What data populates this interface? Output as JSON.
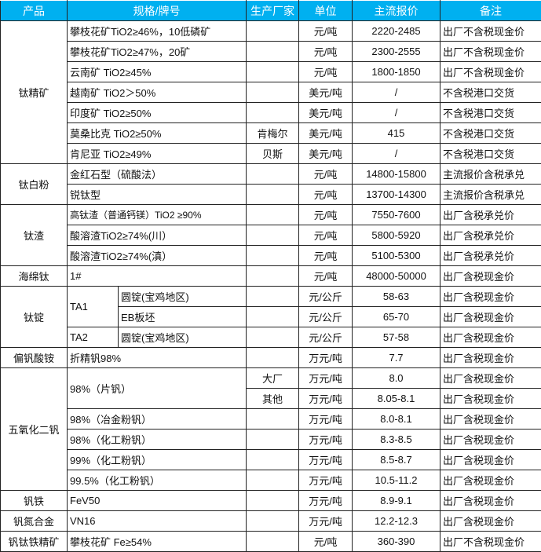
{
  "header": {
    "product": "产品",
    "spec": "规格/牌号",
    "manufacturer": "生产厂家",
    "unit": "单位",
    "price": "主流报价",
    "remark": "备注"
  },
  "accent_color": "#00b0f0",
  "products": [
    {
      "name": "钛精矿",
      "items": [
        {
          "spec": "攀枝花矿TiO2≥46%，10低磷矿",
          "manufacturer": "",
          "unit": "元/吨",
          "price": "2220-2485",
          "remark": "出厂不含税现金价"
        },
        {
          "spec": "攀枝花矿TiO2≥47%，20矿",
          "manufacturer": "",
          "unit": "元/吨",
          "price": "2300-2555",
          "remark": "出厂不含税现金价"
        },
        {
          "spec": "云南矿 TiO2≥45%",
          "manufacturer": "",
          "unit": "元/吨",
          "price": "1800-1850",
          "remark": "出厂不含税现金价"
        },
        {
          "spec": "越南矿 TiO2＞50%",
          "manufacturer": "",
          "unit": "美元/吨",
          "price": "/",
          "remark": "不含税港口交货"
        },
        {
          "spec": "印度矿 TiO2≥50%",
          "manufacturer": "",
          "unit": "美元/吨",
          "price": "/",
          "remark": "不含税港口交货"
        },
        {
          "spec": "莫桑比克 TiO2≥50%",
          "manufacturer": "肯梅尔",
          "unit": "美元/吨",
          "price": "415",
          "remark": "不含税港口交货"
        },
        {
          "spec": "肯尼亚 TiO2≥49%",
          "manufacturer": "贝斯",
          "unit": "美元/吨",
          "price": "/",
          "remark": "不含税港口交货"
        }
      ]
    },
    {
      "name": "钛白粉",
      "items": [
        {
          "spec": "金红石型（硫酸法）",
          "manufacturer": "",
          "unit": "元/吨",
          "price": "14800-15800",
          "remark": "主流报价含税承兑"
        },
        {
          "spec": "锐钛型",
          "manufacturer": "",
          "unit": "元/吨",
          "price": "13700-14300",
          "remark": "主流报价含税承兑"
        }
      ]
    },
    {
      "name": "钛渣",
      "items": [
        {
          "spec": "高钛渣（普通钙镁）TiO2 ≥90%",
          "manufacturer": "",
          "unit": "元/吨",
          "price": "7550-7600",
          "remark": "出厂含税承兑价",
          "small": true
        },
        {
          "spec": "酸溶渣TiO2≥74%(川）",
          "manufacturer": "",
          "unit": "元/吨",
          "price": "5800-5920",
          "remark": "出厂含税承兑价"
        },
        {
          "spec": "酸溶渣TiO2≥74%(滇）",
          "manufacturer": "",
          "unit": "元/吨",
          "price": "5100-5300",
          "remark": "出厂含税承兑价"
        }
      ]
    },
    {
      "name": "海绵钛",
      "items": [
        {
          "spec": "1#",
          "manufacturer": "",
          "unit": "元/吨",
          "price": "48000-50000",
          "remark": "出厂含税现金价"
        }
      ]
    },
    {
      "name": "钛锭",
      "items": [
        {
          "spec": "TA1",
          "sub": "圆锭(宝鸡地区)",
          "manufacturer": "",
          "unit": "元/公斤",
          "price": "58-63",
          "remark": "出厂含税现金价"
        },
        {
          "spec": "TA1",
          "sub": "EB板坯",
          "manufacturer": "",
          "unit": "元/公斤",
          "price": "65-70",
          "remark": "出厂含税现金价"
        },
        {
          "spec": "TA2",
          "sub": "圆锭(宝鸡地区)",
          "manufacturer": "",
          "unit": "元/公斤",
          "price": "57-58",
          "remark": "出厂含税现金价"
        }
      ]
    },
    {
      "name": "偏钒酸铵",
      "items": [
        {
          "spec": "折精钒98%",
          "manufacturer": "",
          "unit": "万元/吨",
          "price": "7.7",
          "remark": "出厂含税现金价"
        }
      ]
    },
    {
      "name": "五氧化二钒",
      "items": [
        {
          "spec": "98%（片钒）",
          "manufacturer": "大厂",
          "unit": "万元/吨",
          "price": "8.0",
          "remark": "出厂含税现金价"
        },
        {
          "spec": "98%（片钒）",
          "manufacturer": "其他",
          "unit": "万元/吨",
          "price": "8.05-8.1",
          "remark": "出厂含税现金价"
        },
        {
          "spec": "98%（冶金粉钒）",
          "manufacturer": "",
          "unit": "万元/吨",
          "price": "8.0-8.1",
          "remark": "出厂含税现金价"
        },
        {
          "spec": "98%（化工粉钒）",
          "manufacturer": "",
          "unit": "万元/吨",
          "price": "8.3-8.5",
          "remark": "出厂含税现金价"
        },
        {
          "spec": "99%（化工粉钒）",
          "manufacturer": "",
          "unit": "万元/吨",
          "price": "8.5-8.7",
          "remark": "出厂含税现金价"
        },
        {
          "spec": "99.5%（化工粉钒）",
          "manufacturer": "",
          "unit": "万元/吨",
          "price": "10.5-11.2",
          "remark": "出厂含税现金价"
        }
      ]
    },
    {
      "name": "钒铁",
      "items": [
        {
          "spec": "FeV50",
          "manufacturer": "",
          "unit": "万元/吨",
          "price": "8.9-9.1",
          "remark": "出厂含税现金价"
        }
      ]
    },
    {
      "name": "钒氮合金",
      "items": [
        {
          "spec": "VN16",
          "manufacturer": "",
          "unit": "万元/吨",
          "price": "12.2-12.3",
          "remark": "出厂含税现金价"
        }
      ]
    },
    {
      "name": "钒钛铁精矿",
      "items": [
        {
          "spec": "攀枝花矿 Fe≥54%",
          "manufacturer": "",
          "unit": "元/吨",
          "price": "360-390",
          "remark": "出厂不含税现金价"
        }
      ]
    }
  ]
}
